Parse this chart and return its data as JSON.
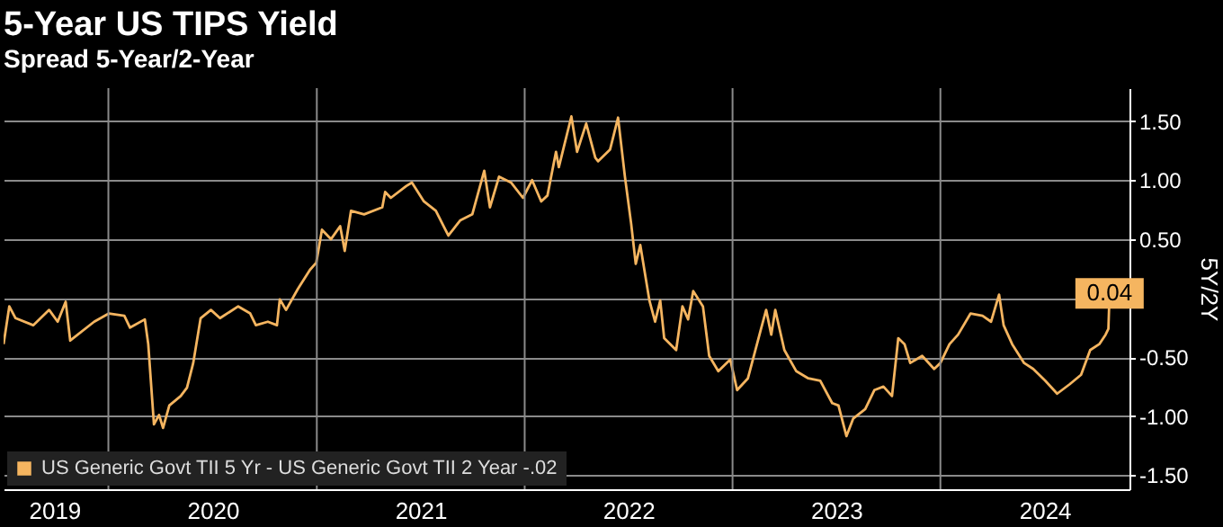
{
  "chart_data": {
    "type": "line",
    "title": "5-Year US TIPS Yield",
    "subtitle": "Spread 5-Year/2-Year",
    "ylabel": "5Y/2Y",
    "x": [
      "2019-07-01",
      "2019-07-11",
      "2019-07-22",
      "2019-08-22",
      "2019-09-19",
      "2019-10-04",
      "2019-10-18",
      "2019-10-26",
      "2019-12-07",
      "2020-01-02",
      "2020-01-29",
      "2020-02-08",
      "2020-03-05",
      "2020-03-11",
      "2020-03-21",
      "2020-03-30",
      "2020-04-06",
      "2020-04-17",
      "2020-05-07",
      "2020-05-18",
      "2020-05-29",
      "2020-06-11",
      "2020-06-29",
      "2020-07-15",
      "2020-08-16",
      "2020-09-06",
      "2020-09-16",
      "2020-10-07",
      "2020-10-23",
      "2020-10-28",
      "2020-11-08",
      "2020-11-29",
      "2020-12-20",
      "2020-12-31",
      "2021-01-10",
      "2021-01-26",
      "2021-02-11",
      "2021-02-19",
      "2021-03-02",
      "2021-03-25",
      "2021-04-26",
      "2021-05-01",
      "2021-05-11",
      "2021-06-07",
      "2021-06-17",
      "2021-07-08",
      "2021-07-29",
      "2021-08-20",
      "2021-09-10",
      "2021-10-01",
      "2021-10-22",
      "2021-11-01",
      "2021-11-17",
      "2021-12-08",
      "2021-12-29",
      "2022-01-14",
      "2022-01-30",
      "2022-02-10",
      "2022-02-25",
      "2022-03-02",
      "2022-03-24",
      "2022-04-03",
      "2022-04-19",
      "2022-05-05",
      "2022-05-10",
      "2022-05-31",
      "2022-06-14",
      "2022-06-26",
      "2022-07-07",
      "2022-07-15",
      "2022-07-23",
      "2022-08-08",
      "2022-08-18",
      "2022-08-27",
      "2022-09-03",
      "2022-09-24",
      "2022-10-05",
      "2022-10-15",
      "2022-10-24",
      "2022-11-10",
      "2022-11-21",
      "2022-12-07",
      "2022-12-28",
      "2023-01-09",
      "2023-01-28",
      "2023-02-19",
      "2023-03-01",
      "2023-03-10",
      "2023-03-17",
      "2023-04-02",
      "2023-04-23",
      "2023-05-14",
      "2023-06-04",
      "2023-06-25",
      "2023-07-06",
      "2023-07-20",
      "2023-08-01",
      "2023-08-22",
      "2023-09-07",
      "2023-09-23",
      "2023-10-08",
      "2023-10-19",
      "2023-10-30",
      "2023-11-09",
      "2023-11-30",
      "2023-12-21",
      "2024-01-01",
      "2024-01-17",
      "2024-02-01",
      "2024-02-23",
      "2024-03-15",
      "2024-03-30",
      "2024-04-13",
      "2024-04-21",
      "2024-05-06",
      "2024-05-27",
      "2024-06-12",
      "2024-07-03",
      "2024-07-24",
      "2024-08-15",
      "2024-09-04",
      "2024-09-20",
      "2024-10-06",
      "2024-10-17",
      "2024-10-22",
      "2024-10-24"
    ],
    "series": [
      {
        "name": "US Generic Govt TII 5 Yr - US Generic Govt TII 2 Year -.02",
        "color": "#f5b560",
        "values": [
          -0.39,
          -0.07,
          -0.17,
          -0.23,
          -0.1,
          -0.2,
          -0.03,
          -0.36,
          -0.2,
          -0.13,
          -0.15,
          -0.25,
          -0.18,
          -0.39,
          -1.07,
          -0.99,
          -1.1,
          -0.91,
          -0.83,
          -0.76,
          -0.55,
          -0.17,
          -0.1,
          -0.17,
          -0.07,
          -0.13,
          -0.23,
          -0.2,
          -0.23,
          -0.01,
          -0.1,
          0.08,
          0.24,
          0.3,
          0.58,
          0.5,
          0.61,
          0.4,
          0.74,
          0.71,
          0.77,
          0.9,
          0.85,
          0.95,
          0.98,
          0.82,
          0.74,
          0.53,
          0.66,
          0.71,
          1.08,
          0.77,
          1.03,
          0.98,
          0.85,
          1.0,
          0.82,
          0.87,
          1.24,
          1.11,
          1.54,
          1.24,
          1.48,
          1.19,
          1.16,
          1.26,
          1.53,
          1.03,
          0.63,
          0.29,
          0.45,
          -0.02,
          -0.2,
          -0.02,
          -0.34,
          -0.44,
          -0.07,
          -0.18,
          0.06,
          -0.07,
          -0.49,
          -0.62,
          -0.52,
          -0.78,
          -0.68,
          -0.28,
          -0.1,
          -0.31,
          -0.1,
          -0.44,
          -0.62,
          -0.68,
          -0.7,
          -0.89,
          -0.91,
          -1.17,
          -1.02,
          -0.94,
          -0.78,
          -0.75,
          -0.83,
          -0.34,
          -0.39,
          -0.55,
          -0.49,
          -0.6,
          -0.55,
          -0.39,
          -0.31,
          -0.13,
          -0.15,
          -0.2,
          0.03,
          -0.23,
          -0.39,
          -0.55,
          -0.6,
          -0.7,
          -0.81,
          -0.73,
          -0.65,
          -0.44,
          -0.39,
          -0.31,
          -0.26,
          0.04
        ]
      }
    ],
    "xlim": [
      "2019-07-01",
      "2024-11-28"
    ],
    "xticks": [
      {
        "value": "2019-09-28",
        "label": "2019"
      },
      {
        "value": "2020-01-01",
        "label": null
      },
      {
        "value": "2020-07-02",
        "label": "2020"
      },
      {
        "value": "2021-01-01",
        "label": null
      },
      {
        "value": "2021-07-02",
        "label": "2021"
      },
      {
        "value": "2022-01-01",
        "label": null
      },
      {
        "value": "2022-07-02",
        "label": "2022"
      },
      {
        "value": "2023-01-01",
        "label": null
      },
      {
        "value": "2023-07-02",
        "label": "2023"
      },
      {
        "value": "2024-01-01",
        "label": null
      },
      {
        "value": "2024-07-02",
        "label": "2024"
      }
    ],
    "ylim": [
      -1.62,
      1.78
    ],
    "yticks": [
      {
        "value": -1.5,
        "label": "-1.50"
      },
      {
        "value": -1.0,
        "label": "-1.00"
      },
      {
        "value": -0.5,
        "label": "-0.50"
      },
      {
        "value": 0.0,
        "label": null
      },
      {
        "value": 0.5,
        "label": "0.50"
      },
      {
        "value": 1.0,
        "label": "1.00"
      },
      {
        "value": 1.5,
        "label": "1.50"
      }
    ],
    "annotations": [
      {
        "text": "0.04",
        "x": "2024-10-24",
        "y": 0.04
      }
    ],
    "grid": true,
    "legend": "bottom left",
    "marker": "none",
    "line_style": "solid"
  }
}
